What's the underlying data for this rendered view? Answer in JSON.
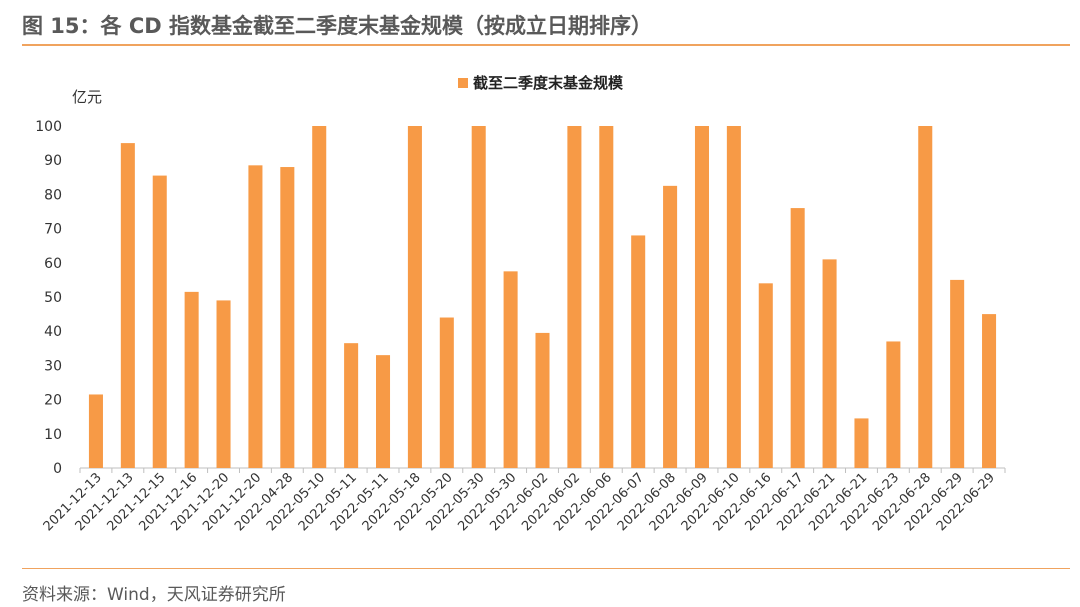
{
  "header": {
    "title": "图 15：各 CD 指数基金截至二季度末基金规模（按成立日期排序）"
  },
  "footer": {
    "source": "资料来源：Wind，天风证券研究所"
  },
  "colors": {
    "bar": "#f79a46",
    "accent_rule": "#f0a35e"
  },
  "chart_data": {
    "type": "bar",
    "unit_label": "亿元",
    "legend": "top-center",
    "grid": false,
    "ylim": [
      0,
      100
    ],
    "yticks": [
      0,
      10,
      20,
      30,
      40,
      50,
      60,
      70,
      80,
      90,
      100
    ],
    "categories": [
      "2021-12-13",
      "2021-12-13",
      "2021-12-15",
      "2021-12-16",
      "2021-12-20",
      "2021-12-20",
      "2022-04-28",
      "2022-05-10",
      "2022-05-11",
      "2022-05-11",
      "2022-05-18",
      "2022-05-20",
      "2022-05-30",
      "2022-05-30",
      "2022-06-02",
      "2022-06-02",
      "2022-06-06",
      "2022-06-07",
      "2022-06-08",
      "2022-06-09",
      "2022-06-10",
      "2022-06-16",
      "2022-06-17",
      "2022-06-21",
      "2022-06-21",
      "2022-06-23",
      "2022-06-28",
      "2022-06-29",
      "2022-06-29"
    ],
    "series": [
      {
        "name": "截至二季度末基金规模",
        "values": [
          21.5,
          95,
          85.5,
          51.5,
          49,
          88.5,
          88,
          100,
          36.5,
          33,
          100,
          44,
          100,
          57.5,
          39.5,
          100,
          100,
          68,
          82.5,
          100,
          100,
          54,
          76,
          61,
          14.5,
          37,
          100,
          55,
          45
        ]
      }
    ]
  }
}
